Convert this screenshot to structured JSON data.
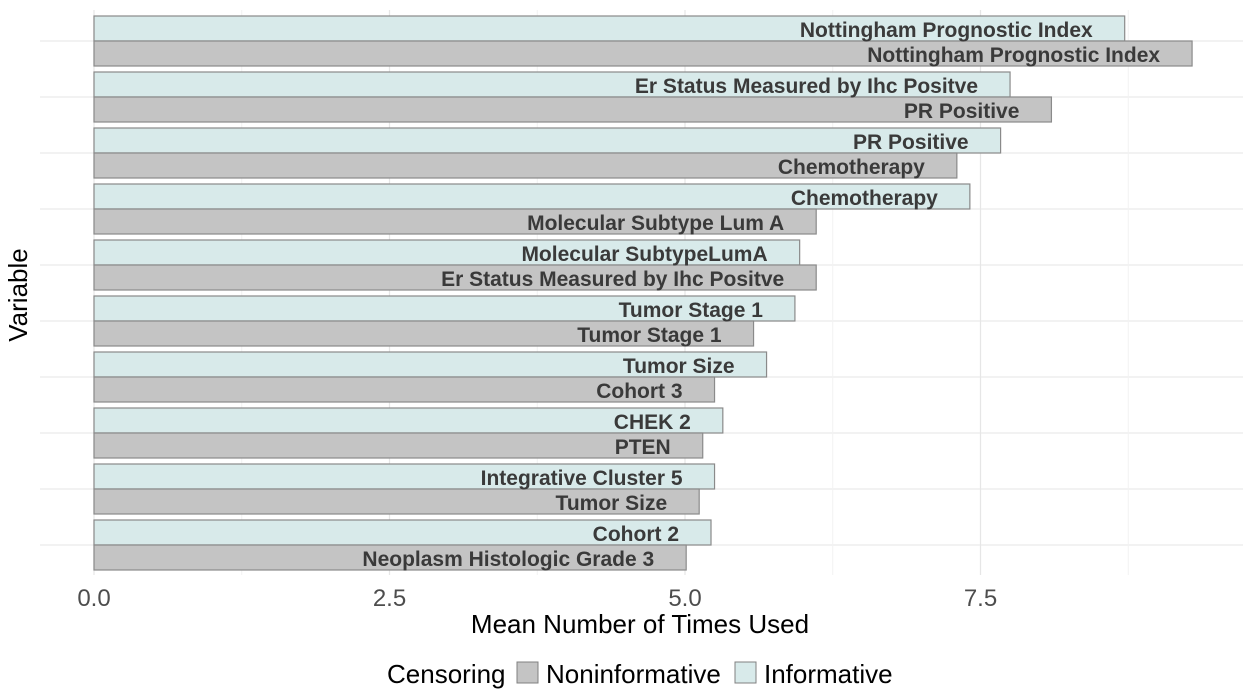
{
  "chart_data": {
    "type": "bar",
    "orientation": "horizontal",
    "xlabel": "Mean Number of Times Used",
    "ylabel": "Variable",
    "xlim": [
      0,
      9.3
    ],
    "x_ticks": [
      0,
      2.5,
      5,
      7.5
    ],
    "x_tick_labels": [
      "0.0",
      "2.5",
      "5.0",
      "7.5"
    ],
    "grid": true,
    "legend": {
      "title": "Censoring",
      "position": "bottom",
      "entries": [
        {
          "name": "Noninformative",
          "color": "#c4c4c4"
        },
        {
          "name": "Informative",
          "color": "#d8eaea"
        }
      ]
    },
    "groups": [
      {
        "informative": {
          "label": "Nottingham Prognostic Index",
          "value": 8.72
        },
        "noninformative": {
          "label": "Nottingham Prognostic Index",
          "value": 9.29
        }
      },
      {
        "informative": {
          "label": "Er Status Measured by Ihc Positve",
          "value": 7.75
        },
        "noninformative": {
          "label": "PR Positive",
          "value": 8.1
        }
      },
      {
        "informative": {
          "label": "PR Positive",
          "value": 7.67
        },
        "noninformative": {
          "label": "Chemotherapy",
          "value": 7.3
        }
      },
      {
        "informative": {
          "label": "Chemotherapy",
          "value": 7.41
        },
        "noninformative": {
          "label": "Molecular Subtype Lum A",
          "value": 6.11
        }
      },
      {
        "informative": {
          "label": "Molecular SubtypeLumA",
          "value": 5.97
        },
        "noninformative": {
          "label": "Er Status Measured by Ihc Positve",
          "value": 6.11
        }
      },
      {
        "informative": {
          "label": "Tumor Stage 1",
          "value": 5.93
        },
        "noninformative": {
          "label": "Tumor Stage 1",
          "value": 5.58
        }
      },
      {
        "informative": {
          "label": "Tumor Size",
          "value": 5.69
        },
        "noninformative": {
          "label": "Cohort 3",
          "value": 5.25
        }
      },
      {
        "informative": {
          "label": "CHEK 2",
          "value": 5.32
        },
        "noninformative": {
          "label": "PTEN",
          "value": 5.15
        }
      },
      {
        "informative": {
          "label": "Integrative Cluster 5",
          "value": 5.25
        },
        "noninformative": {
          "label": "Tumor Size",
          "value": 5.12
        }
      },
      {
        "informative": {
          "label": "Cohort 2",
          "value": 5.22
        },
        "noninformative": {
          "label": "Neoplasm Histologic Grade 3",
          "value": 5.01
        }
      }
    ]
  }
}
